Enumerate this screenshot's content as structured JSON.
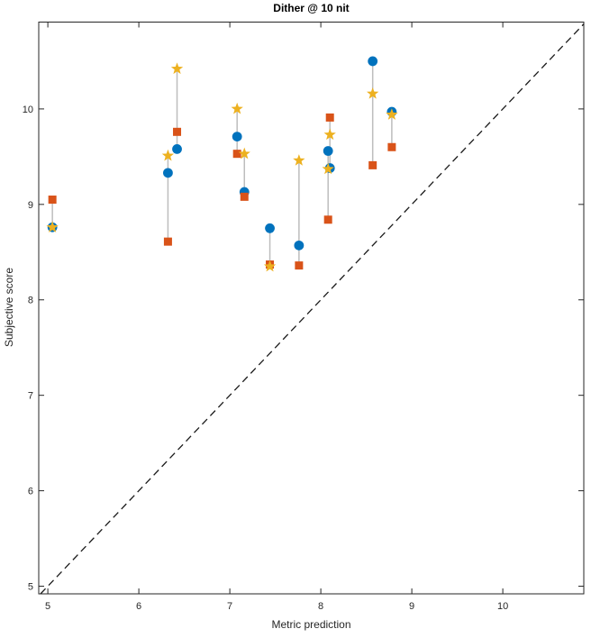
{
  "chart_data": {
    "type": "scatter",
    "title": "Dither @ 10 nit",
    "xlabel": "Metric prediction",
    "ylabel": "Subjective score",
    "xlim": [
      4.9,
      10.89
    ],
    "ylim": [
      4.92,
      10.91
    ],
    "xticks": [
      5,
      6,
      7,
      8,
      9,
      10
    ],
    "yticks": [
      5,
      6,
      7,
      8,
      9,
      10
    ],
    "grid": false,
    "legend": "none",
    "axis_color": "#262626",
    "connector_color": "#bdbdbd",
    "identity_line": {
      "style": "dashed",
      "color": "#1a1a1a",
      "from": 4.92,
      "to": 10.89
    },
    "x": [
      5.05,
      6.32,
      6.42,
      7.08,
      7.16,
      7.44,
      7.76,
      8.08,
      8.1,
      8.57,
      8.78
    ],
    "series": [
      {
        "name": "circles",
        "marker": "circle",
        "color": "#0072BD",
        "values": [
          8.76,
          9.33,
          9.58,
          9.71,
          9.13,
          8.75,
          8.57,
          9.56,
          9.38,
          10.5,
          9.97
        ]
      },
      {
        "name": "squares",
        "marker": "square",
        "color": "#D95319",
        "values": [
          9.05,
          8.61,
          9.76,
          9.53,
          9.08,
          8.37,
          8.36,
          8.84,
          9.91,
          9.41,
          9.6
        ]
      },
      {
        "name": "stars",
        "marker": "pentagram",
        "color": "#EDB120",
        "values": [
          8.76,
          9.51,
          10.42,
          10.0,
          9.53,
          8.35,
          9.46,
          9.37,
          9.73,
          10.16,
          9.94
        ]
      }
    ]
  }
}
